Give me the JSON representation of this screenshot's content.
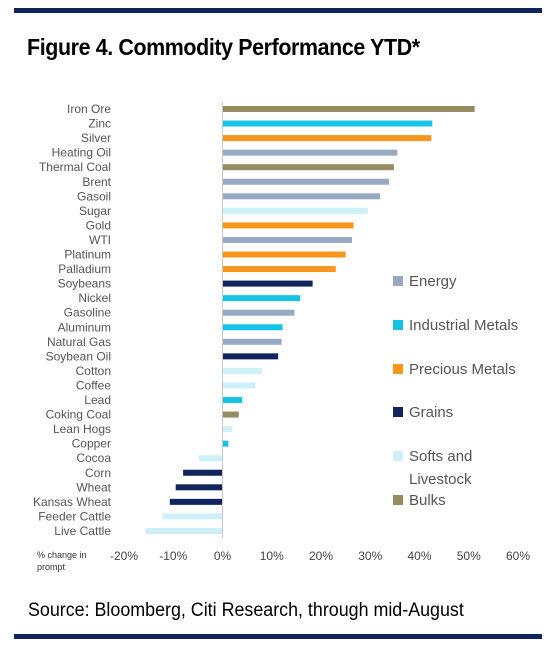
{
  "title": "Figure 4. Commodity Performance YTD*",
  "source": "Source: Bloomberg, Citi Research, through mid-August",
  "colors": {
    "rule": "#10245e",
    "Energy": "#9aa9c3",
    "Industrial Metals": "#16c2e6",
    "Precious Metals": "#f7961d",
    "Grains": "#10245e",
    "Softs and Livestock": "#cdf0f9",
    "Bulks": "#958d5f"
  },
  "chart_data": {
    "type": "bar",
    "orientation": "horizontal",
    "xlabel": [
      "% change in",
      "prompt"
    ],
    "xlim": [
      -20,
      60
    ],
    "ticks": [
      "-20%",
      "-10%",
      "0%",
      "10%",
      "20%",
      "30%",
      "40%",
      "50%",
      "60%"
    ],
    "tick_values": [
      -20,
      -10,
      0,
      10,
      20,
      30,
      40,
      50,
      60
    ],
    "legend_position": "right",
    "legend": [
      {
        "name": "Energy"
      },
      {
        "name": "Industrial Metals"
      },
      {
        "name": "Precious Metals"
      },
      {
        "name": "Grains"
      },
      {
        "name": "Softs and Livestock",
        "lines": [
          "Softs and",
          "Livestock"
        ]
      },
      {
        "name": "Bulks"
      }
    ],
    "bars": [
      {
        "label": "Iron Ore",
        "value": 51.2,
        "group": "Bulks"
      },
      {
        "label": "Zinc",
        "value": 42.6,
        "group": "Industrial Metals"
      },
      {
        "label": "Silver",
        "value": 42.4,
        "group": "Precious Metals"
      },
      {
        "label": "Heating Oil",
        "value": 35.5,
        "group": "Energy"
      },
      {
        "label": "Thermal Coal",
        "value": 34.8,
        "group": "Bulks"
      },
      {
        "label": "Brent",
        "value": 33.8,
        "group": "Energy"
      },
      {
        "label": "Gasoil",
        "value": 32.0,
        "group": "Energy"
      },
      {
        "label": "Sugar",
        "value": 29.5,
        "group": "Softs and Livestock"
      },
      {
        "label": "Gold",
        "value": 26.6,
        "group": "Precious Metals"
      },
      {
        "label": "WTI",
        "value": 26.3,
        "group": "Energy"
      },
      {
        "label": "Platinum",
        "value": 25.0,
        "group": "Precious Metals"
      },
      {
        "label": "Palladium",
        "value": 23.0,
        "group": "Precious Metals"
      },
      {
        "label": "Soybeans",
        "value": 18.3,
        "group": "Grains"
      },
      {
        "label": "Nickel",
        "value": 15.8,
        "group": "Industrial Metals"
      },
      {
        "label": "Gasoline",
        "value": 14.6,
        "group": "Energy"
      },
      {
        "label": "Aluminum",
        "value": 12.2,
        "group": "Industrial Metals"
      },
      {
        "label": "Natural Gas",
        "value": 12.0,
        "group": "Energy"
      },
      {
        "label": "Soybean Oil",
        "value": 11.3,
        "group": "Grains"
      },
      {
        "label": "Cotton",
        "value": 8.0,
        "group": "Softs and Livestock"
      },
      {
        "label": "Coffee",
        "value": 6.7,
        "group": "Softs and Livestock"
      },
      {
        "label": "Lead",
        "value": 4.0,
        "group": "Industrial Metals"
      },
      {
        "label": "Coking Coal",
        "value": 3.3,
        "group": "Bulks"
      },
      {
        "label": "Lean Hogs",
        "value": 2.0,
        "group": "Softs and Livestock"
      },
      {
        "label": "Copper",
        "value": 1.2,
        "group": "Industrial Metals"
      },
      {
        "label": "Cocoa",
        "value": -4.8,
        "group": "Softs and Livestock"
      },
      {
        "label": "Corn",
        "value": -8.0,
        "group": "Grains"
      },
      {
        "label": "Wheat",
        "value": -9.5,
        "group": "Grains"
      },
      {
        "label": "Kansas Wheat",
        "value": -10.7,
        "group": "Grains"
      },
      {
        "label": "Feeder Cattle",
        "value": -12.2,
        "group": "Softs and Livestock"
      },
      {
        "label": "Live Cattle",
        "value": -15.6,
        "group": "Softs and Livestock"
      }
    ]
  }
}
